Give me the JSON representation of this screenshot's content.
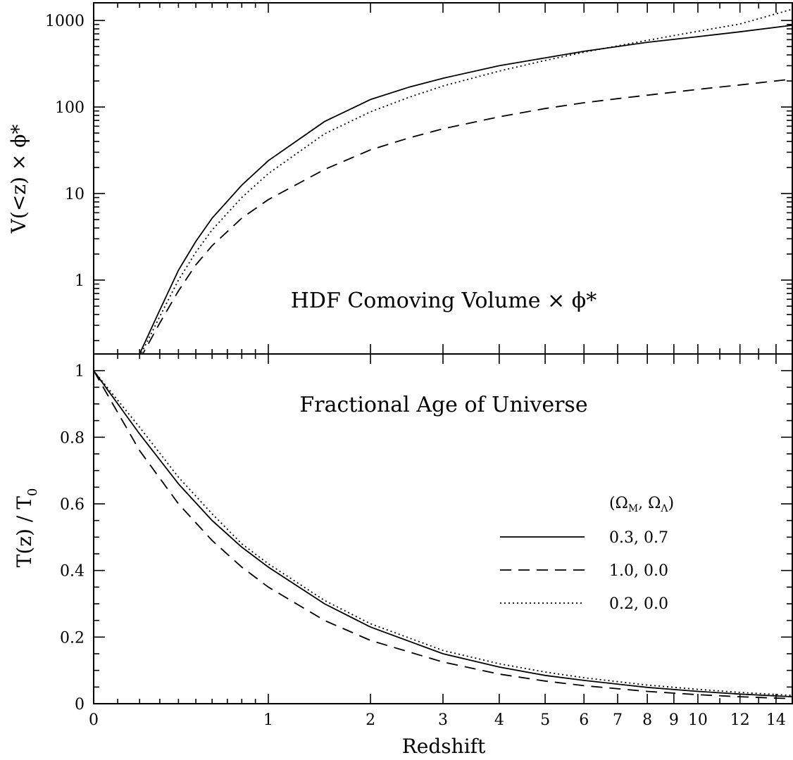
{
  "chart_data": [
    {
      "type": "line",
      "title": "HDF Comoving Volume × ϕ*",
      "xlabel": "",
      "ylabel": "V(<z) × ϕ*",
      "y_scale": "log",
      "ylim": [
        0.14,
        1600
      ],
      "xlim": [
        0,
        15
      ],
      "x_scale": "log(1+z)",
      "y_ticks": [
        1,
        10,
        100,
        1000
      ],
      "y_tick_labels": [
        "1",
        "10",
        "100",
        "1000"
      ],
      "grid": false,
      "series": [
        {
          "name": "0.3, 0.7",
          "style": "solid",
          "x": [
            0.2,
            0.3,
            0.4,
            0.5,
            0.6,
            0.8,
            1.0,
            1.5,
            2,
            2.5,
            3,
            4,
            5,
            6,
            7,
            8,
            10,
            12,
            15
          ],
          "y": [
            0.14,
            0.45,
            1.3,
            2.8,
            5.2,
            12.5,
            24,
            68,
            122,
            170,
            215,
            300,
            370,
            440,
            500,
            560,
            650,
            740,
            880
          ]
        },
        {
          "name": "1.0, 0.0",
          "style": "dashed",
          "x": [
            0.2,
            0.3,
            0.4,
            0.5,
            0.6,
            0.8,
            1.0,
            1.5,
            2,
            2.5,
            3,
            4,
            5,
            6,
            7,
            8,
            10,
            12,
            15
          ],
          "y": [
            0.12,
            0.32,
            0.75,
            1.5,
            2.5,
            5.2,
            8.5,
            19,
            32,
            44,
            56,
            77,
            96,
            112,
            125,
            137,
            160,
            180,
            210
          ]
        },
        {
          "name": "0.2, 0.0",
          "style": "dotted",
          "x": [
            0.2,
            0.3,
            0.4,
            0.5,
            0.6,
            0.8,
            1.0,
            1.5,
            2,
            2.5,
            3,
            4,
            5,
            6,
            7,
            8,
            10,
            12,
            15
          ],
          "y": [
            0.13,
            0.38,
            1.0,
            2.1,
            3.8,
            9.0,
            17,
            49,
            88,
            130,
            175,
            260,
            345,
            430,
            510,
            590,
            750,
            910,
            1350
          ]
        }
      ]
    },
    {
      "type": "line",
      "title": "Fractional Age of Universe",
      "xlabel": "Redshift",
      "ylabel": "T(z) / T",
      "ylabel_subscript": "0",
      "xlim": [
        0,
        15
      ],
      "x_scale": "log(1+z)",
      "x_ticks": [
        0,
        1,
        2,
        3,
        4,
        5,
        6,
        7,
        8,
        9,
        10,
        12,
        14
      ],
      "x_tick_labels": [
        "0",
        "1",
        "2",
        "3",
        "4",
        "5",
        "6",
        "7",
        "8",
        "9",
        "10",
        "12",
        "14"
      ],
      "ylim": [
        0,
        1.05
      ],
      "y_ticks": [
        0,
        0.2,
        0.4,
        0.6,
        0.8,
        1
      ],
      "y_tick_labels": [
        "0",
        "0.2",
        "0.4",
        "0.6",
        "0.8",
        "1"
      ],
      "grid": false,
      "legend": {
        "title": "(Ω",
        "title_sub1": "M",
        "title_mid": ", Ω",
        "title_sub2": "Λ",
        "title_end": ")",
        "placement": "right",
        "entries": [
          "0.3, 0.7",
          "1.0, 0.0",
          "0.2, 0.0"
        ]
      },
      "series": [
        {
          "name": "0.3, 0.7",
          "style": "solid",
          "x": [
            0,
            0.2,
            0.4,
            0.6,
            0.8,
            1.0,
            1.5,
            2,
            3,
            4,
            5,
            6,
            8,
            10,
            12,
            15
          ],
          "y": [
            1.0,
            0.81,
            0.66,
            0.55,
            0.47,
            0.41,
            0.3,
            0.23,
            0.15,
            0.11,
            0.085,
            0.07,
            0.049,
            0.037,
            0.029,
            0.021
          ]
        },
        {
          "name": "1.0, 0.0",
          "style": "dashed",
          "x": [
            0,
            0.2,
            0.4,
            0.6,
            0.8,
            1.0,
            1.5,
            2,
            3,
            4,
            5,
            6,
            8,
            10,
            12,
            15
          ],
          "y": [
            1.0,
            0.76,
            0.6,
            0.49,
            0.41,
            0.35,
            0.25,
            0.19,
            0.125,
            0.089,
            0.068,
            0.054,
            0.037,
            0.027,
            0.021,
            0.015
          ]
        },
        {
          "name": "0.2, 0.0",
          "style": "dotted",
          "x": [
            0,
            0.2,
            0.4,
            0.6,
            0.8,
            1.0,
            1.5,
            2,
            3,
            4,
            5,
            6,
            8,
            10,
            12,
            15
          ],
          "y": [
            1.0,
            0.83,
            0.68,
            0.57,
            0.48,
            0.42,
            0.31,
            0.24,
            0.16,
            0.12,
            0.095,
            0.078,
            0.056,
            0.043,
            0.034,
            0.025
          ]
        }
      ]
    }
  ]
}
